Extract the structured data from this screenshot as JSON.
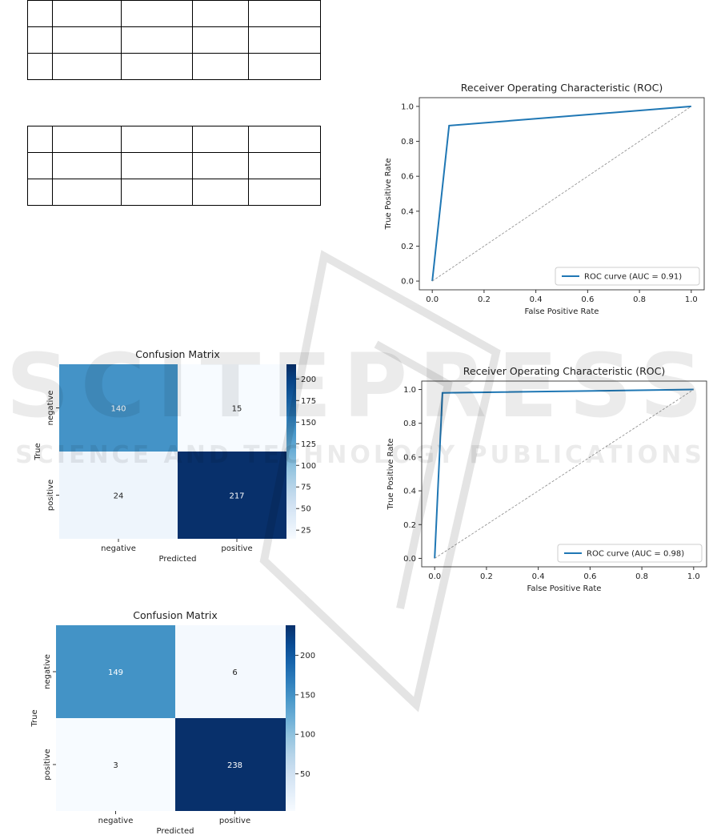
{
  "tables": [
    {
      "rows": [
        [
          "",
          "",
          "",
          "",
          ""
        ],
        [
          "",
          "",
          "",
          "",
          ""
        ],
        [
          "",
          "",
          "",
          "",
          ""
        ]
      ]
    },
    {
      "rows": [
        [
          "",
          "",
          "",
          "",
          ""
        ],
        [
          "",
          "",
          "",
          "",
          ""
        ],
        [
          "",
          "",
          "",
          "",
          ""
        ]
      ]
    }
  ],
  "chart_data": [
    {
      "type": "line",
      "title": "Receiver Operating Characteristic (ROC)",
      "xlabel": "False Positive Rate",
      "ylabel": "True Positive Rate",
      "xlim": [
        -0.05,
        1.05
      ],
      "ylim": [
        -0.05,
        1.05
      ],
      "xticks": [
        "0.0",
        "0.2",
        "0.4",
        "0.6",
        "0.8",
        "1.0"
      ],
      "yticks": [
        "0.0",
        "0.2",
        "0.4",
        "0.6",
        "0.8",
        "1.0"
      ],
      "series": [
        {
          "name": "ROC curve (AUC = 0.91)",
          "x": [
            0.0,
            0.065,
            1.0
          ],
          "y": [
            0.0,
            0.89,
            1.0
          ],
          "color": "#1f77b4"
        },
        {
          "x": [
            0.0,
            1.0
          ],
          "y": [
            0.0,
            1.0
          ],
          "color": "#888888",
          "style": "dashed"
        }
      ],
      "legend": "lower-right",
      "grid": false
    },
    {
      "type": "heatmap",
      "title": "Confusion Matrix",
      "xlabel": "Predicted",
      "ylabel": "True",
      "x_categories": [
        "negative",
        "positive"
      ],
      "y_categories": [
        "negative",
        "positive"
      ],
      "values": [
        [
          140,
          15
        ],
        [
          24,
          217
        ]
      ],
      "colorbar_ticks": [
        "200",
        "175",
        "150",
        "125",
        "100",
        "75",
        "50",
        "25"
      ],
      "colormap": "Blues"
    },
    {
      "type": "line",
      "title": "Receiver Operating Characteristic (ROC)",
      "xlabel": "False Positive Rate",
      "ylabel": "True Positive Rate",
      "xlim": [
        -0.05,
        1.05
      ],
      "ylim": [
        -0.05,
        1.05
      ],
      "xticks": [
        "0.0",
        "0.2",
        "0.4",
        "0.6",
        "0.8",
        "1.0"
      ],
      "yticks": [
        "0.0",
        "0.2",
        "0.4",
        "0.6",
        "0.8",
        "1.0"
      ],
      "series": [
        {
          "name": "ROC curve (AUC = 0.98)",
          "x": [
            0.0,
            0.03,
            1.0
          ],
          "y": [
            0.0,
            0.98,
            1.0
          ],
          "color": "#1f77b4"
        },
        {
          "x": [
            0.0,
            1.0
          ],
          "y": [
            0.0,
            1.0
          ],
          "color": "#888888",
          "style": "dashed"
        }
      ],
      "legend": "lower-right",
      "grid": false
    },
    {
      "type": "heatmap",
      "title": "Confusion Matrix",
      "xlabel": "Predicted",
      "ylabel": "True",
      "x_categories": [
        "negative",
        "positive"
      ],
      "y_categories": [
        "negative",
        "positive"
      ],
      "values": [
        [
          149,
          6
        ],
        [
          3,
          238
        ]
      ],
      "colorbar_ticks": [
        "200",
        "150",
        "100",
        "50"
      ],
      "colormap": "Blues"
    }
  ],
  "watermark": {
    "line1": "SCITEPRESS",
    "line2": "SCIENCE AND TECHNOLOGY PUBLICATIONS"
  }
}
